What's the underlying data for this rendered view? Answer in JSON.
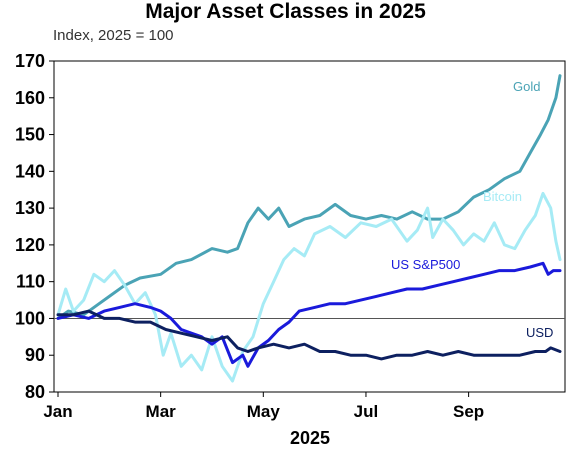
{
  "chart_data": {
    "type": "line",
    "title": "Major Asset Classes in 2025",
    "subtitle": "Index, 2025 = 100",
    "xlabel": "2025",
    "ylabel": "",
    "ylim": [
      80,
      170
    ],
    "yticks": [
      80,
      90,
      100,
      110,
      120,
      130,
      140,
      150,
      160,
      170
    ],
    "xtick_labels": [
      "Jan",
      "Mar",
      "May",
      "Jul",
      "Sep"
    ],
    "xtick_months": [
      0,
      2,
      4,
      6,
      8
    ],
    "xlim_months": [
      0,
      9.8
    ],
    "reference_line": 100,
    "grid": false,
    "legend": "inline labels",
    "series": [
      {
        "name": "Gold",
        "color": "#4aa3b5",
        "width": 3,
        "points": [
          [
            0,
            100
          ],
          [
            0.2,
            102
          ],
          [
            0.5,
            101
          ],
          [
            0.8,
            104
          ],
          [
            1.0,
            106
          ],
          [
            1.3,
            109
          ],
          [
            1.6,
            111
          ],
          [
            2.0,
            112
          ],
          [
            2.3,
            115
          ],
          [
            2.6,
            116
          ],
          [
            3.0,
            119
          ],
          [
            3.3,
            118
          ],
          [
            3.5,
            119
          ],
          [
            3.7,
            126
          ],
          [
            3.9,
            130
          ],
          [
            4.1,
            127
          ],
          [
            4.3,
            130
          ],
          [
            4.5,
            125
          ],
          [
            4.8,
            127
          ],
          [
            5.1,
            128
          ],
          [
            5.4,
            131
          ],
          [
            5.7,
            128
          ],
          [
            6.0,
            127
          ],
          [
            6.3,
            128
          ],
          [
            6.6,
            127
          ],
          [
            6.9,
            129
          ],
          [
            7.2,
            127
          ],
          [
            7.5,
            127
          ],
          [
            7.8,
            129
          ],
          [
            8.1,
            133
          ],
          [
            8.4,
            135
          ],
          [
            8.7,
            138
          ],
          [
            9.0,
            140
          ],
          [
            9.2,
            145
          ],
          [
            9.4,
            150
          ],
          [
            9.55,
            154
          ],
          [
            9.7,
            160
          ],
          [
            9.78,
            166
          ]
        ]
      },
      {
        "name": "Bitcoin",
        "color": "#a6ebf5",
        "width": 3,
        "points": [
          [
            0,
            101
          ],
          [
            0.15,
            108
          ],
          [
            0.3,
            102
          ],
          [
            0.5,
            105
          ],
          [
            0.7,
            112
          ],
          [
            0.9,
            110
          ],
          [
            1.1,
            113
          ],
          [
            1.3,
            109
          ],
          [
            1.5,
            104
          ],
          [
            1.7,
            107
          ],
          [
            1.9,
            101
          ],
          [
            2.05,
            90
          ],
          [
            2.2,
            96
          ],
          [
            2.4,
            87
          ],
          [
            2.6,
            90
          ],
          [
            2.8,
            86
          ],
          [
            3.0,
            95
          ],
          [
            3.2,
            87
          ],
          [
            3.4,
            83
          ],
          [
            3.6,
            91
          ],
          [
            3.8,
            95
          ],
          [
            4.0,
            104
          ],
          [
            4.2,
            110
          ],
          [
            4.4,
            116
          ],
          [
            4.6,
            119
          ],
          [
            4.8,
            117
          ],
          [
            5.0,
            123
          ],
          [
            5.3,
            125
          ],
          [
            5.6,
            122
          ],
          [
            5.9,
            126
          ],
          [
            6.2,
            125
          ],
          [
            6.5,
            127
          ],
          [
            6.8,
            121
          ],
          [
            7.0,
            124
          ],
          [
            7.2,
            130
          ],
          [
            7.3,
            122
          ],
          [
            7.5,
            127
          ],
          [
            7.7,
            124
          ],
          [
            7.9,
            120
          ],
          [
            8.1,
            123
          ],
          [
            8.3,
            121
          ],
          [
            8.5,
            126
          ],
          [
            8.7,
            120
          ],
          [
            8.9,
            119
          ],
          [
            9.1,
            124
          ],
          [
            9.3,
            128
          ],
          [
            9.45,
            134
          ],
          [
            9.6,
            130
          ],
          [
            9.7,
            121
          ],
          [
            9.78,
            116
          ]
        ]
      },
      {
        "name": "US S&P500",
        "color": "#1a1adb",
        "width": 3,
        "points": [
          [
            0,
            100
          ],
          [
            0.3,
            101
          ],
          [
            0.6,
            100
          ],
          [
            0.9,
            102
          ],
          [
            1.2,
            103
          ],
          [
            1.5,
            104
          ],
          [
            1.8,
            103
          ],
          [
            2.0,
            102
          ],
          [
            2.2,
            100
          ],
          [
            2.4,
            97
          ],
          [
            2.6,
            96
          ],
          [
            2.8,
            95
          ],
          [
            3.0,
            93
          ],
          [
            3.2,
            95
          ],
          [
            3.4,
            88
          ],
          [
            3.6,
            90
          ],
          [
            3.7,
            87
          ],
          [
            3.9,
            92
          ],
          [
            4.1,
            94
          ],
          [
            4.3,
            97
          ],
          [
            4.5,
            99
          ],
          [
            4.7,
            102
          ],
          [
            5.0,
            103
          ],
          [
            5.3,
            104
          ],
          [
            5.6,
            104
          ],
          [
            5.9,
            105
          ],
          [
            6.2,
            106
          ],
          [
            6.5,
            107
          ],
          [
            6.8,
            108
          ],
          [
            7.1,
            108
          ],
          [
            7.4,
            109
          ],
          [
            7.7,
            110
          ],
          [
            8.0,
            111
          ],
          [
            8.3,
            112
          ],
          [
            8.6,
            113
          ],
          [
            8.9,
            113
          ],
          [
            9.2,
            114
          ],
          [
            9.45,
            115
          ],
          [
            9.55,
            112
          ],
          [
            9.65,
            113
          ],
          [
            9.78,
            113
          ]
        ]
      },
      {
        "name": "USD",
        "color": "#0d2060",
        "width": 3,
        "points": [
          [
            0,
            101
          ],
          [
            0.3,
            101
          ],
          [
            0.6,
            102
          ],
          [
            0.9,
            100
          ],
          [
            1.2,
            100
          ],
          [
            1.5,
            99
          ],
          [
            1.8,
            99
          ],
          [
            2.1,
            97
          ],
          [
            2.4,
            96
          ],
          [
            2.7,
            95
          ],
          [
            3.0,
            94
          ],
          [
            3.3,
            95
          ],
          [
            3.5,
            92
          ],
          [
            3.7,
            91
          ],
          [
            3.9,
            92
          ],
          [
            4.2,
            93
          ],
          [
            4.5,
            92
          ],
          [
            4.8,
            93
          ],
          [
            5.1,
            91
          ],
          [
            5.4,
            91
          ],
          [
            5.7,
            90
          ],
          [
            6.0,
            90
          ],
          [
            6.3,
            89
          ],
          [
            6.6,
            90
          ],
          [
            6.9,
            90
          ],
          [
            7.2,
            91
          ],
          [
            7.5,
            90
          ],
          [
            7.8,
            91
          ],
          [
            8.1,
            90
          ],
          [
            8.4,
            90
          ],
          [
            8.7,
            90
          ],
          [
            9.0,
            90
          ],
          [
            9.3,
            91
          ],
          [
            9.5,
            91
          ],
          [
            9.6,
            92
          ],
          [
            9.78,
            91
          ]
        ]
      }
    ]
  }
}
